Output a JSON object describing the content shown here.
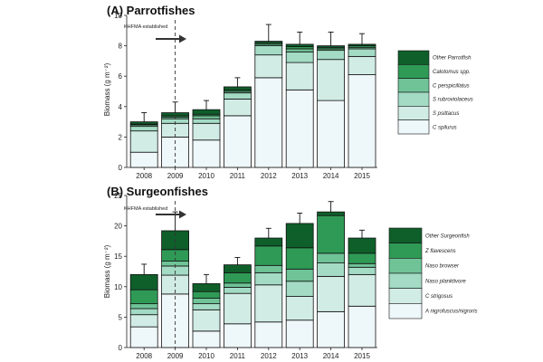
{
  "chart_data": [
    {
      "type": "bar",
      "stacked": true,
      "title": "(A) Parrotfishes",
      "ylabel": "Biomass (g m⁻²)",
      "xlabel": "",
      "categories": [
        "2008",
        "2009",
        "2010",
        "2011",
        "2012",
        "2013",
        "2014",
        "2015"
      ],
      "ylim": [
        0,
        10
      ],
      "yticks": [
        0,
        2,
        4,
        6,
        8,
        10
      ],
      "annotation": "KHFMA established",
      "marker_after": "2009",
      "colors": [
        "#eef7f9",
        "#d1ece4",
        "#a3dbc5",
        "#6fc397",
        "#2f9a56",
        "#0f5f2b"
      ],
      "series": [
        {
          "name": "C spilurus",
          "values": [
            1.0,
            2.0,
            1.8,
            3.4,
            5.9,
            5.1,
            4.4,
            6.1
          ]
        },
        {
          "name": "S psittacus",
          "values": [
            1.4,
            0.9,
            1.1,
            1.1,
            1.5,
            1.8,
            2.7,
            1.2
          ]
        },
        {
          "name": "S rubroviolaceus",
          "values": [
            0.3,
            0.3,
            0.3,
            0.4,
            0.6,
            0.7,
            0.6,
            0.5
          ]
        },
        {
          "name": "C perspicillatus",
          "values": [
            0.1,
            0.1,
            0.2,
            0.1,
            0.1,
            0.2,
            0.1,
            0.1
          ]
        },
        {
          "name": "Calotomus spp.",
          "values": [
            0.05,
            0.1,
            0.1,
            0.1,
            0.1,
            0.15,
            0.1,
            0.1
          ]
        },
        {
          "name": "Other Parrotfish",
          "values": [
            0.15,
            0.2,
            0.3,
            0.2,
            0.1,
            0.15,
            0.1,
            0.1
          ]
        }
      ],
      "errors": [
        0.6,
        0.7,
        0.6,
        0.6,
        1.1,
        0.8,
        0.9,
        0.7
      ]
    },
    {
      "type": "bar",
      "stacked": true,
      "title": "(B) Surgeonfishes",
      "ylabel": "Biomass (g m⁻²)",
      "xlabel": "",
      "categories": [
        "2008",
        "2009",
        "2010",
        "2011",
        "2012",
        "2013",
        "2014",
        "2015"
      ],
      "ylim": [
        0,
        25
      ],
      "yticks": [
        0,
        5,
        10,
        15,
        20,
        25
      ],
      "annotation": "KHFMA established",
      "marker_after": "2009",
      "colors": [
        "#eef7f9",
        "#d1ece4",
        "#a3dbc5",
        "#6fc397",
        "#2f9a56",
        "#0f5f2b"
      ],
      "series": [
        {
          "name": "A nigrofuscus/nigroris",
          "values": [
            3.4,
            8.8,
            2.7,
            3.9,
            4.2,
            4.5,
            5.9,
            6.8
          ]
        },
        {
          "name": "C strigosus",
          "values": [
            2.0,
            3.1,
            3.5,
            5.0,
            6.1,
            3.9,
            5.8,
            5.2
          ]
        },
        {
          "name": "Naso planktivore",
          "values": [
            1.0,
            1.5,
            1.0,
            1.0,
            2.0,
            2.5,
            2.2,
            1.2
          ]
        },
        {
          "name": "Naso browser",
          "values": [
            0.8,
            0.8,
            0.9,
            0.7,
            1.2,
            2.0,
            1.6,
            0.6
          ]
        },
        {
          "name": "Z flavescens",
          "values": [
            2.3,
            1.9,
            1.1,
            1.7,
            3.2,
            3.5,
            6.2,
            1.7
          ]
        },
        {
          "name": "Other Surgeonfish",
          "values": [
            2.5,
            3.1,
            1.3,
            1.3,
            1.3,
            4.0,
            0.6,
            2.5
          ]
        }
      ],
      "errors": [
        1.7,
        3.1,
        1.5,
        1.2,
        1.6,
        1.7,
        1.7,
        1.3
      ]
    }
  ]
}
